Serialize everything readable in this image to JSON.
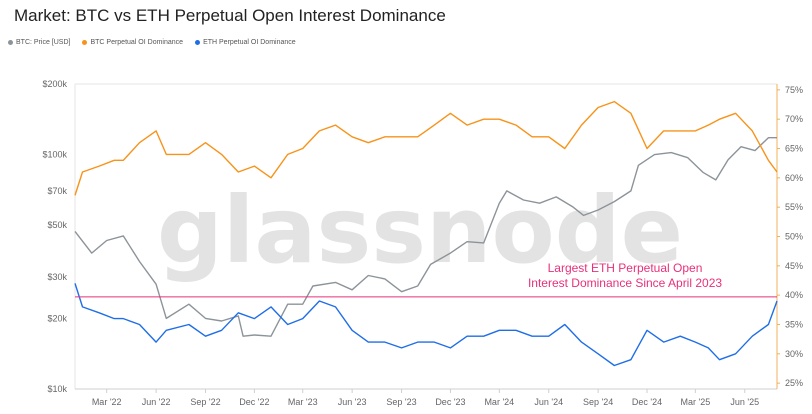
{
  "page": {
    "title": "Market: BTC vs ETH Perpetual Open Interest Dominance"
  },
  "watermark": "glassnode",
  "chart_data": {
    "type": "line",
    "title": "Market: BTC vs ETH Perpetual Open Interest Dominance",
    "legend_placement": "top-left",
    "x_ticks": [
      "Mar '22",
      "Jun '22",
      "Sep '22",
      "Dec '22",
      "Mar '23",
      "Jun '23",
      "Sep '23",
      "Dec '23",
      "Mar '24",
      "Jun '24",
      "Sep '24",
      "Dec '24",
      "Mar '25",
      "Jun '25"
    ],
    "x_range": [
      "2022-01-01",
      "2025-07-31"
    ],
    "left_axis": {
      "scale": "log",
      "ticks": [
        "$10k",
        "$20k",
        "$30k",
        "$50k",
        "$70k",
        "$100k",
        "$200k"
      ],
      "tick_values": [
        10000,
        20000,
        30000,
        50000,
        70000,
        100000,
        200000
      ],
      "range": [
        10000,
        200000
      ]
    },
    "right_axis": {
      "scale": "linear",
      "ticks": [
        "25%",
        "30%",
        "35%",
        "40%",
        "45%",
        "50%",
        "55%",
        "60%",
        "65%",
        "70%",
        "75%"
      ],
      "tick_values": [
        25,
        30,
        35,
        40,
        45,
        50,
        55,
        60,
        65,
        70,
        75
      ],
      "range": [
        24,
        76
      ]
    },
    "series": [
      {
        "name": "BTC: Price [USD]",
        "axis": "left",
        "color": "#8c9499",
        "x": [
          "2022-01-01",
          "2022-02-01",
          "2022-03-01",
          "2022-04-01",
          "2022-05-01",
          "2022-06-01",
          "2022-06-20",
          "2022-08-01",
          "2022-09-01",
          "2022-10-01",
          "2022-11-01",
          "2022-11-10",
          "2022-12-01",
          "2023-01-01",
          "2023-02-01",
          "2023-03-01",
          "2023-03-20",
          "2023-05-01",
          "2023-06-01",
          "2023-07-01",
          "2023-08-01",
          "2023-09-01",
          "2023-10-01",
          "2023-10-25",
          "2023-12-01",
          "2024-01-01",
          "2024-02-01",
          "2024-03-01",
          "2024-03-15",
          "2024-04-15",
          "2024-05-15",
          "2024-06-15",
          "2024-07-15",
          "2024-08-05",
          "2024-09-01",
          "2024-10-01",
          "2024-11-01",
          "2024-11-15",
          "2024-12-15",
          "2025-01-15",
          "2025-02-15",
          "2025-03-15",
          "2025-04-08",
          "2025-05-01",
          "2025-05-25",
          "2025-06-20",
          "2025-07-15",
          "2025-07-31"
        ],
        "values": [
          47000,
          38000,
          43000,
          45000,
          35000,
          28000,
          20000,
          23000,
          20000,
          19500,
          20500,
          16800,
          17000,
          16800,
          23000,
          23000,
          27500,
          28500,
          26500,
          30500,
          29500,
          26000,
          27500,
          34000,
          38000,
          42500,
          42000,
          62000,
          70000,
          64000,
          62000,
          66000,
          60000,
          55000,
          58000,
          63000,
          70000,
          90000,
          100000,
          102000,
          97000,
          84000,
          78000,
          95000,
          108000,
          104000,
          118000,
          118000
        ]
      },
      {
        "name": "BTC Perpetual OI Dominance",
        "axis": "right",
        "color": "#f7931a",
        "x": [
          "2022-01-01",
          "2022-01-15",
          "2022-02-15",
          "2022-03-15",
          "2022-04-01",
          "2022-05-01",
          "2022-06-01",
          "2022-06-20",
          "2022-08-01",
          "2022-09-01",
          "2022-10-01",
          "2022-11-01",
          "2022-12-01",
          "2023-01-01",
          "2023-02-01",
          "2023-03-01",
          "2023-04-01",
          "2023-05-01",
          "2023-06-01",
          "2023-07-01",
          "2023-08-01",
          "2023-09-01",
          "2023-10-01",
          "2023-11-01",
          "2023-12-01",
          "2024-01-01",
          "2024-02-01",
          "2024-03-01",
          "2024-04-01",
          "2024-05-01",
          "2024-06-01",
          "2024-07-01",
          "2024-08-01",
          "2024-09-01",
          "2024-10-01",
          "2024-11-01",
          "2024-12-01",
          "2025-01-01",
          "2025-02-01",
          "2025-03-01",
          "2025-03-25",
          "2025-04-15",
          "2025-05-15",
          "2025-06-15",
          "2025-07-15",
          "2025-07-31"
        ],
        "values": [
          57,
          61,
          62,
          63,
          63,
          66,
          68,
          64,
          64,
          66,
          64,
          61,
          62,
          60,
          64,
          65,
          68,
          69,
          67,
          66,
          67,
          67,
          67,
          69,
          71,
          69,
          70,
          70,
          69,
          67,
          67,
          65,
          69,
          72,
          73,
          71,
          65,
          68,
          68,
          68,
          69,
          70,
          71,
          68,
          63,
          61
        ]
      },
      {
        "name": "ETH Perpetual OI Dominance",
        "axis": "right",
        "color": "#1f6ee8",
        "x": [
          "2022-01-01",
          "2022-01-15",
          "2022-02-15",
          "2022-03-15",
          "2022-04-01",
          "2022-05-01",
          "2022-06-01",
          "2022-06-20",
          "2022-08-01",
          "2022-09-01",
          "2022-10-01",
          "2022-11-01",
          "2022-12-01",
          "2023-01-01",
          "2023-02-01",
          "2023-03-01",
          "2023-04-01",
          "2023-05-01",
          "2023-06-01",
          "2023-07-01",
          "2023-08-01",
          "2023-09-01",
          "2023-10-01",
          "2023-11-01",
          "2023-12-01",
          "2024-01-01",
          "2024-02-01",
          "2024-03-01",
          "2024-04-01",
          "2024-05-01",
          "2024-06-01",
          "2024-07-01",
          "2024-08-01",
          "2024-09-01",
          "2024-10-01",
          "2024-11-01",
          "2024-12-01",
          "2025-01-01",
          "2025-02-01",
          "2025-03-01",
          "2025-03-25",
          "2025-04-15",
          "2025-05-15",
          "2025-06-15",
          "2025-07-15",
          "2025-07-31"
        ],
        "values": [
          42,
          38,
          37,
          36,
          36,
          35,
          32,
          34,
          35,
          33,
          34,
          37,
          36,
          38,
          35,
          36,
          39,
          38,
          34,
          32,
          32,
          31,
          32,
          32,
          31,
          33,
          33,
          34,
          34,
          33,
          33,
          35,
          32,
          30,
          28,
          29,
          34,
          32,
          33,
          32,
          31,
          29,
          30,
          33,
          35,
          39
        ]
      }
    ],
    "reference_line": {
      "axis": "right",
      "value": 39.7,
      "color": "#e8307a"
    },
    "annotation": {
      "line1": "Largest ETH Perpetual Open",
      "line2": "Interest Dominance Since April 2023",
      "color": "#e8307a"
    }
  }
}
